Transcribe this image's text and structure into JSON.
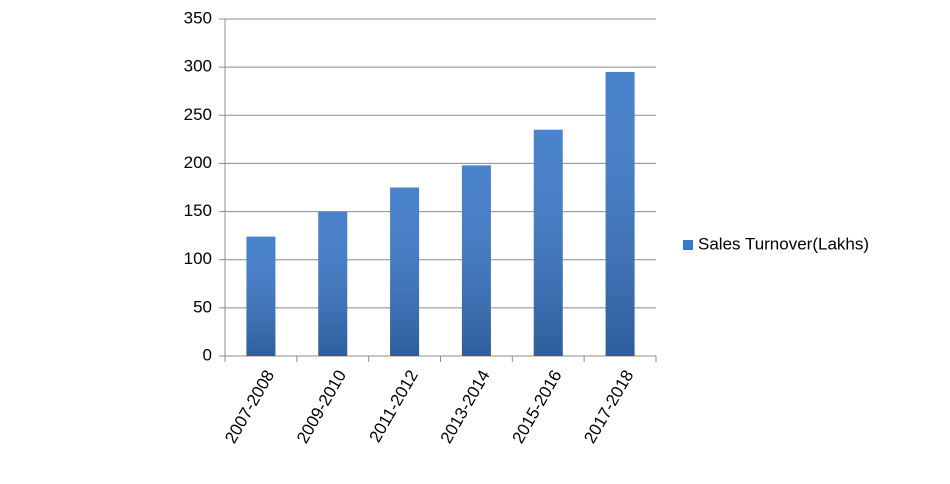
{
  "chart_data": {
    "type": "bar",
    "categories": [
      "2007-2008",
      "2009-2010",
      "2011-2012",
      "2013-2014",
      "2015-2016",
      "2017-2018"
    ],
    "series": [
      {
        "name": "Sales Turnover(Lakhs)",
        "color": "#3a78c8",
        "values": [
          124,
          150,
          175,
          198,
          235,
          295
        ]
      }
    ],
    "ylim": [
      0,
      350
    ],
    "yticks": [
      0,
      50,
      100,
      150,
      200,
      250,
      300,
      350
    ],
    "grid": true,
    "legend": "right"
  }
}
